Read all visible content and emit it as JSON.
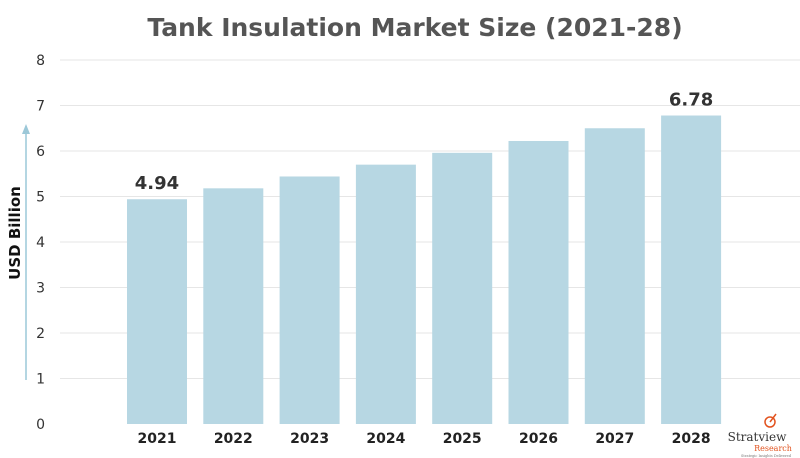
{
  "chart_data": {
    "type": "bar",
    "title": "Tank Insulation Market Size (2021-28)",
    "xlabel": "",
    "ylabel": "USD Billion",
    "categories": [
      "2021",
      "2022",
      "2023",
      "2024",
      "2025",
      "2026",
      "2027",
      "2028"
    ],
    "values": [
      4.94,
      5.18,
      5.44,
      5.7,
      5.96,
      6.22,
      6.5,
      6.78
    ],
    "data_labels": [
      {
        "category": "2021",
        "text": "4.94"
      },
      {
        "category": "2028",
        "text": "6.78"
      }
    ],
    "ylim": [
      0,
      8
    ],
    "yticks": [
      "0",
      "1",
      "2",
      "3",
      "4",
      "5",
      "6",
      "7",
      "8"
    ],
    "grid": true,
    "bar_color": "#b7d7e3",
    "legend": "none"
  },
  "logo": {
    "name": "Stratview",
    "sub": "Research",
    "tagline": "Strategic Insights Delivered"
  },
  "colors": {
    "title": "#555555",
    "axis_arrow": "#9cc8d8",
    "logo_accent": "#e2531f"
  }
}
